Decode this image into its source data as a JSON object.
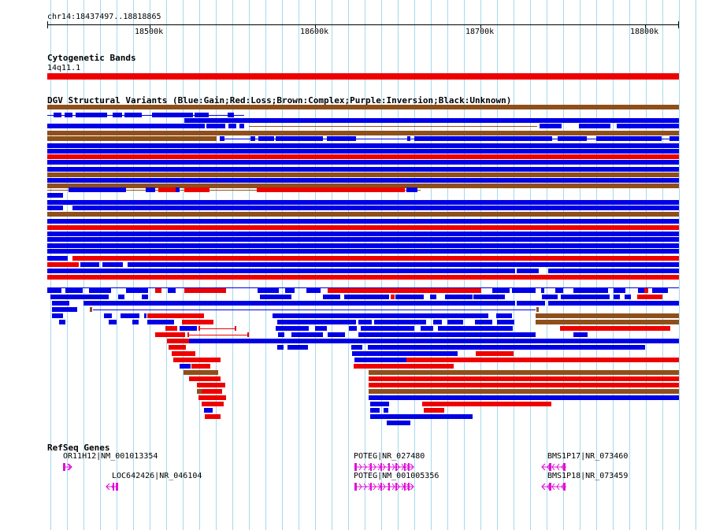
{
  "colors": {
    "grid": "#a6d9ee",
    "gain": "#0000e6",
    "loss": "#ee0000",
    "complex": "#8f4f1b",
    "gene": "#e010d8",
    "cytoband": "#ee0000"
  },
  "ruler": {
    "location": "chr14:18437497..18818865",
    "ticks": [
      "18500k",
      "18600k",
      "18700k",
      "18800k"
    ]
  },
  "cyto": {
    "title": "Cytogenetic Bands",
    "band_label": "14q11.1"
  },
  "dgv": {
    "title": "DGV Structural Variants (Blue:Gain;Red:Loss;Brown:Complex;Purple:Inversion;Black:Unknown)"
  },
  "refseq": {
    "title": "RefSeq Genes",
    "genes": [
      {
        "label": "OR11H12|NM_001013354",
        "icon": "gene-arrow-right"
      },
      {
        "label": "LOC642426|NR_046104",
        "icon": "gene-arrow-left"
      },
      {
        "label": "POTEG|NR_027480",
        "icon": "gene-arrow-right"
      },
      {
        "label": "POTEG|NM_001005356",
        "icon": "gene-arrow-right"
      },
      {
        "label": "BMS1P17|NR_073460",
        "icon": "gene-arrow-left"
      },
      {
        "label": "BMS1P18|NR_073459",
        "icon": "gene-arrow-left"
      }
    ]
  }
}
